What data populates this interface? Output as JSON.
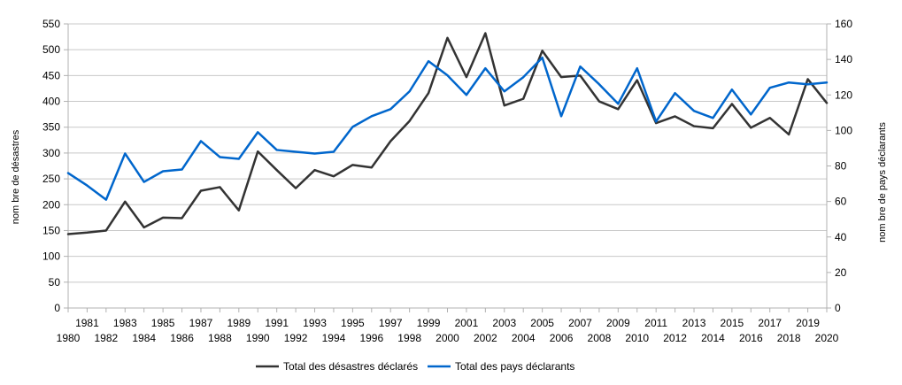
{
  "chart_data": {
    "type": "line",
    "title": "",
    "x": [
      1980,
      1981,
      1982,
      1983,
      1984,
      1985,
      1986,
      1987,
      1988,
      1989,
      1990,
      1991,
      1992,
      1993,
      1994,
      1995,
      1996,
      1997,
      1998,
      1999,
      2000,
      2001,
      2002,
      2003,
      2004,
      2005,
      2006,
      2007,
      2008,
      2009,
      2010,
      2011,
      2012,
      2013,
      2014,
      2015,
      2016,
      2017,
      2018,
      2019,
      2020
    ],
    "ylabel_left": "nom bre de désastres",
    "ylabel_right": "nom bre de pays déclarants",
    "ylim_left": [
      0,
      550
    ],
    "ylim_right": [
      0,
      160
    ],
    "yticks_left": [
      "0",
      "50",
      "100",
      "150",
      "200",
      "250",
      "300",
      "350",
      "400",
      "450",
      "500",
      "550"
    ],
    "yticks_right": [
      "0",
      "20",
      "40",
      "60",
      "80",
      "100",
      "120",
      "140",
      "160"
    ],
    "grid": true,
    "legend_position": "bottom",
    "series": [
      {
        "name": "Total des désastres déclarés",
        "axis": "left",
        "color": "#333333",
        "values": [
          143,
          146,
          150,
          206,
          156,
          175,
          174,
          227,
          234,
          189,
          303,
          267,
          232,
          267,
          255,
          277,
          272,
          323,
          362,
          416,
          523,
          447,
          532,
          392,
          405,
          498,
          447,
          450,
          400,
          385,
          441,
          358,
          371,
          352,
          348,
          395,
          349,
          368,
          336,
          443,
          397
        ]
      },
      {
        "name": "Total des pays déclarants",
        "axis": "right",
        "color": "#0066cc",
        "values": [
          76,
          69,
          61,
          87,
          71,
          77,
          78,
          94,
          85,
          84,
          99,
          89,
          88,
          87,
          88,
          102,
          108,
          112,
          122,
          139,
          131,
          120,
          135,
          122,
          130,
          141,
          108,
          136,
          126,
          115,
          135,
          105,
          121,
          111,
          107,
          123,
          109,
          124,
          127,
          126,
          127
        ]
      }
    ]
  }
}
